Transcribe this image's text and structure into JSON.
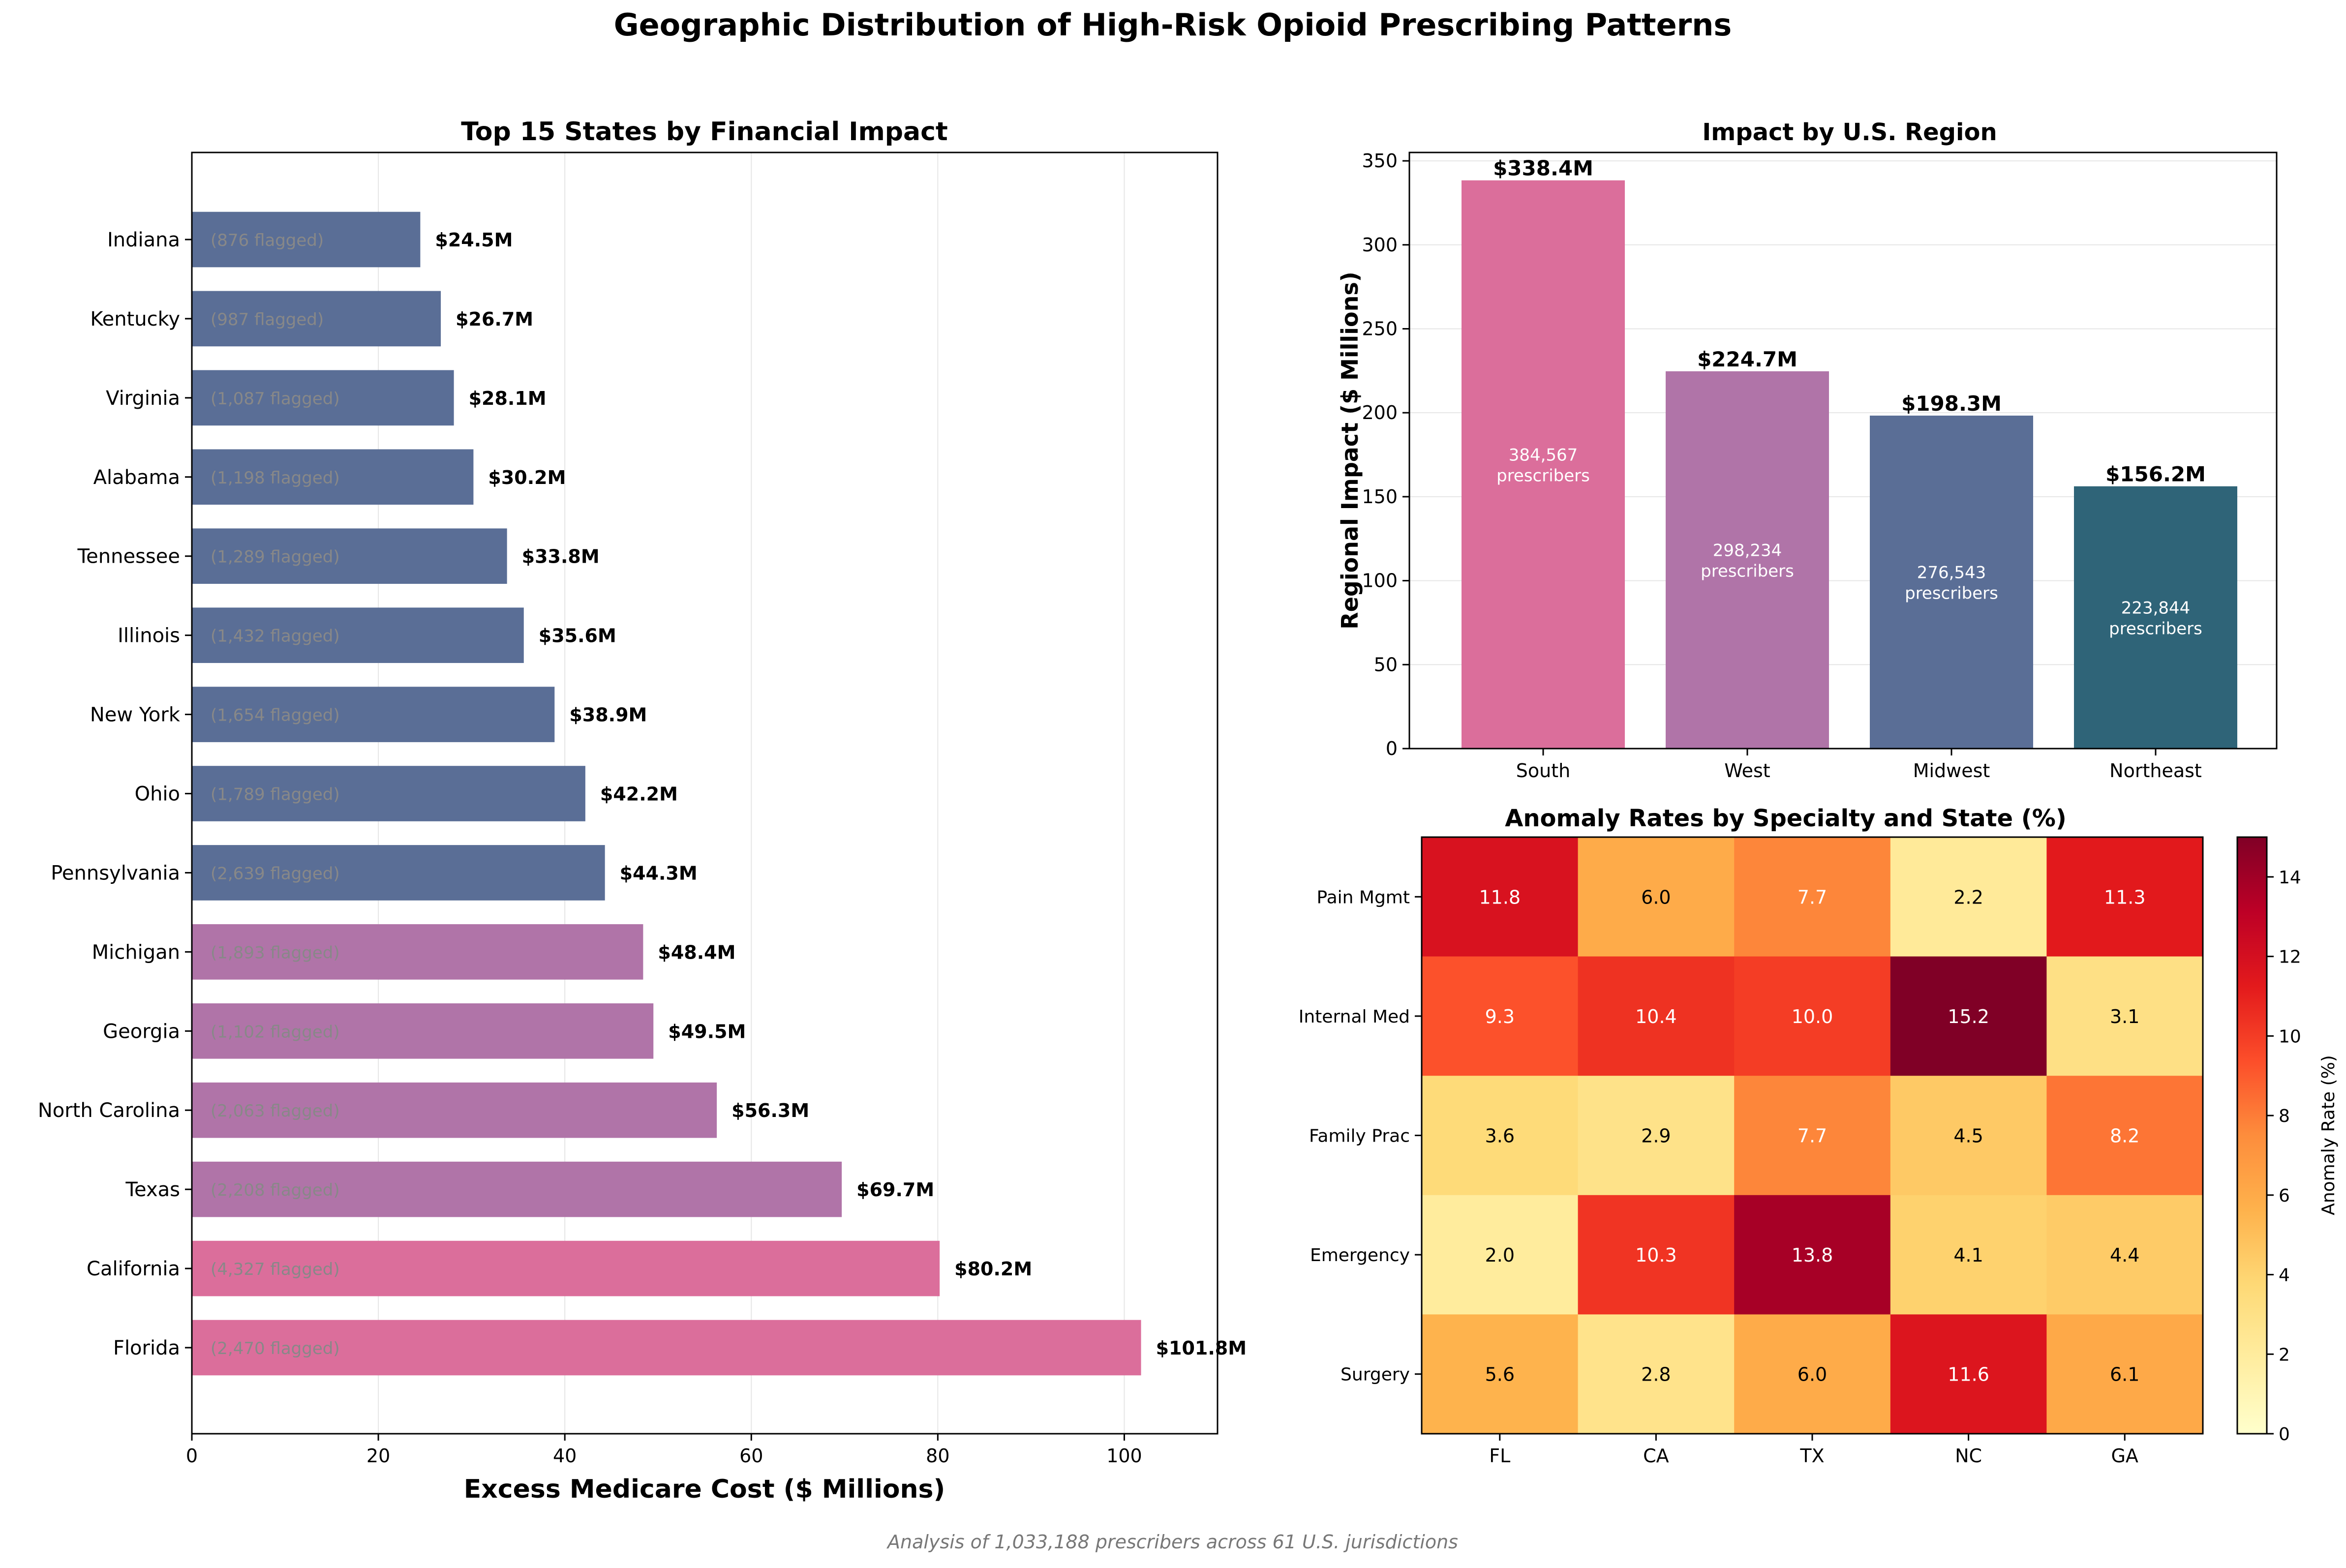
{
  "figure": {
    "title": "Geographic Distribution of High-Risk Opioid Prescribing Patterns",
    "footnote": "Analysis of 1,033,188 prescribers across 61 U.S. jurisdictions"
  },
  "colors": {
    "south": "#db6e9b",
    "west": "#b074a8",
    "midwest": "#5a6e96",
    "northeast": "#2f6478",
    "flagged_text": "#888888",
    "grid": "#e6e6e6"
  },
  "chart_data": [
    {
      "type": "bar",
      "orientation": "horizontal",
      "title": "Top 15 States by Financial Impact",
      "xlabel": "Excess Medicare Cost ($ Millions)",
      "ylabel": "",
      "xlim": [
        0,
        110
      ],
      "xticks": [
        0,
        20,
        40,
        60,
        80,
        100
      ],
      "grid": "vertical",
      "categories": [
        "Indiana",
        "Kentucky",
        "Virginia",
        "Alabama",
        "Tennessee",
        "Illinois",
        "New York",
        "Ohio",
        "Pennsylvania",
        "Michigan",
        "Georgia",
        "North Carolina",
        "Texas",
        "California",
        "Florida"
      ],
      "values": [
        24.5,
        26.7,
        28.1,
        30.2,
        33.8,
        35.6,
        38.9,
        42.2,
        44.3,
        48.4,
        49.5,
        56.3,
        69.7,
        80.2,
        101.8
      ],
      "value_labels": [
        "$24.5M",
        "$26.7M",
        "$28.1M",
        "$30.2M",
        "$33.8M",
        "$35.6M",
        "$38.9M",
        "$42.2M",
        "$44.3M",
        "$48.4M",
        "$49.5M",
        "$56.3M",
        "$69.7M",
        "$80.2M",
        "$101.8M"
      ],
      "flagged_labels": [
        "(876 flagged)",
        "(987 flagged)",
        "(1,087 flagged)",
        "(1,198 flagged)",
        "(1,289 flagged)",
        "(1,432 flagged)",
        "(1,654 flagged)",
        "(1,789 flagged)",
        "(2,639 flagged)",
        "(1,893 flagged)",
        "(1,102 flagged)",
        "(2,063 flagged)",
        "(2,208 flagged)",
        "(4,327 flagged)",
        "(2,470 flagged)"
      ],
      "bar_colors": [
        "midwest",
        "midwest",
        "midwest",
        "midwest",
        "midwest",
        "midwest",
        "midwest",
        "midwest",
        "midwest",
        "west",
        "west",
        "west",
        "west",
        "south",
        "south"
      ]
    },
    {
      "type": "bar",
      "title": "Impact by U.S. Region",
      "xlabel": "",
      "ylabel": "Regional Impact ($ Millions)",
      "ylim": [
        0,
        355
      ],
      "yticks": [
        0,
        50,
        100,
        150,
        200,
        250,
        300,
        350
      ],
      "grid": "horizontal",
      "categories": [
        "South",
        "West",
        "Midwest",
        "Northeast"
      ],
      "values": [
        338.4,
        224.7,
        198.3,
        156.2
      ],
      "value_labels": [
        "$338.4M",
        "$224.7M",
        "$198.3M",
        "$156.2M"
      ],
      "prescriber_counts": [
        "384,567",
        "298,234",
        "276,543",
        "223,844"
      ],
      "prescriber_word": "prescribers",
      "bar_colors": [
        "south",
        "west",
        "midwest",
        "northeast"
      ]
    },
    {
      "type": "heatmap",
      "title": "Anomaly Rates by Specialty and State (%)",
      "rows": [
        "Pain Mgmt",
        "Internal Med",
        "Family Prac",
        "Emergency",
        "Surgery"
      ],
      "cols": [
        "FL",
        "CA",
        "TX",
        "NC",
        "GA"
      ],
      "values": [
        [
          11.8,
          6.0,
          7.7,
          2.2,
          11.3
        ],
        [
          9.3,
          10.4,
          10.0,
          15.2,
          3.1
        ],
        [
          3.6,
          2.9,
          7.7,
          4.5,
          8.2
        ],
        [
          2.0,
          10.3,
          13.8,
          4.1,
          4.4
        ],
        [
          5.6,
          2.8,
          6.0,
          11.6,
          6.1
        ]
      ],
      "colorbar_label": "Anomaly Rate (%)",
      "colorbar_range": [
        0,
        15
      ],
      "colorbar_ticks": [
        0,
        2,
        4,
        6,
        8,
        10,
        12,
        14
      ],
      "colormap": "YlOrRd"
    }
  ]
}
